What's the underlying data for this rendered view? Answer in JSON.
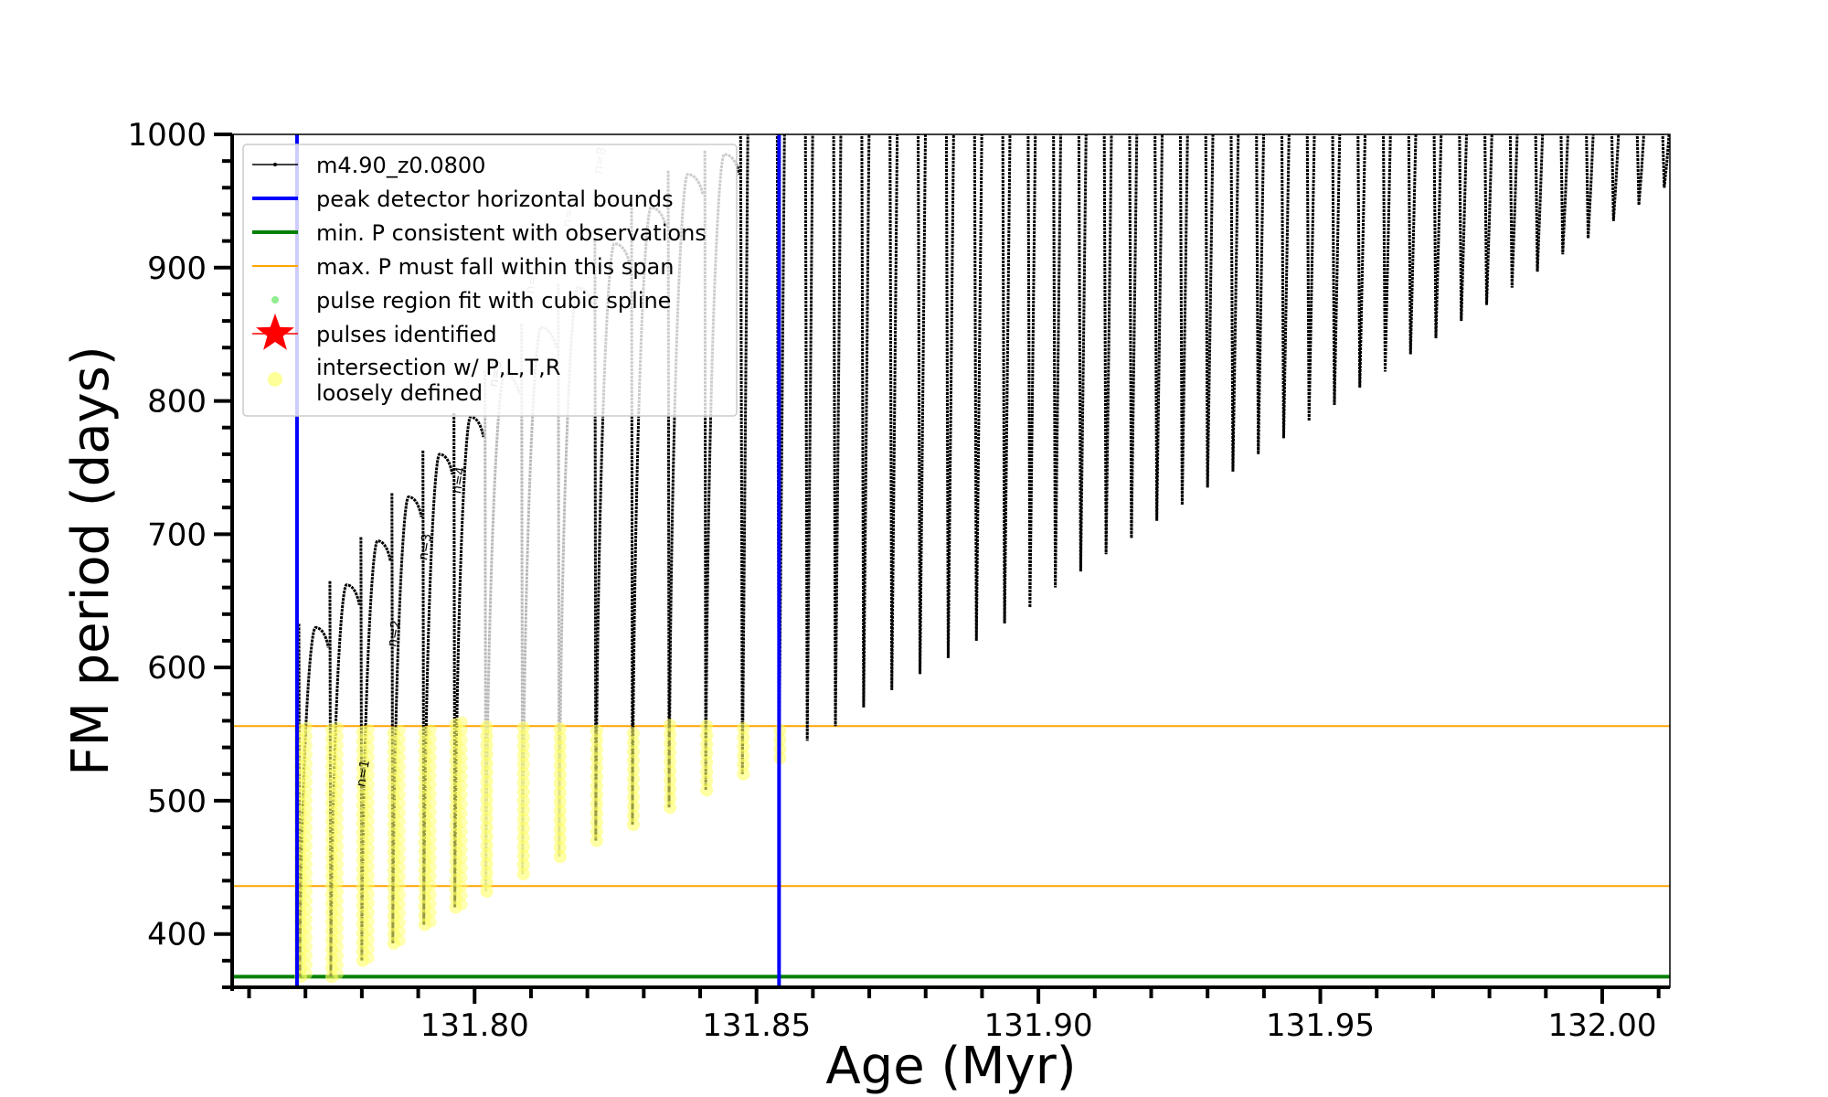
{
  "chart_data": {
    "type": "line",
    "xlabel": "Age (Myr)",
    "ylabel": "FM period (days)",
    "xlim": [
      131.757,
      132.012
    ],
    "ylim": [
      360,
      1000
    ],
    "x_ticks": [
      131.8,
      131.85,
      131.9,
      131.95,
      132.0
    ],
    "x_tick_labels": [
      "131.80",
      "131.85",
      "131.90",
      "131.95",
      "132.00"
    ],
    "y_ticks": [
      400,
      500,
      600,
      700,
      800,
      900,
      1000
    ],
    "y_tick_labels": [
      "400",
      "500",
      "600",
      "700",
      "800",
      "900",
      "1000"
    ],
    "grid": false,
    "legend_position": "upper-left",
    "legend": [
      {
        "label": "m4.90_z0.0800",
        "style": "line-dot",
        "color": "#000000"
      },
      {
        "label": "peak detector horizontal bounds",
        "style": "line",
        "color": "#0000ff"
      },
      {
        "label": "min. P consistent with observations",
        "style": "line",
        "color": "#008000"
      },
      {
        "label": "max. P must fall within this span",
        "style": "line",
        "color": "#ffa500"
      },
      {
        "label": "pulse region fit with cubic spline",
        "style": "dot",
        "color": "#90ee90"
      },
      {
        "label": "pulses identified",
        "style": "star",
        "color": "#ff0000"
      },
      {
        "label": "intersection w/ P,L,T,R\nloosely defined",
        "style": "dot",
        "color": "#ffff99"
      }
    ],
    "series": [
      {
        "name": "m4.90_z0.0800",
        "description_type": "thermal pulse cycles (age, min period, max period)",
        "pulses": [
          {
            "x": 131.769,
            "min": 368,
            "max": 630
          },
          {
            "x": 131.7745,
            "min": 368,
            "max": 662
          },
          {
            "x": 131.78,
            "min": 380,
            "max": 695
          },
          {
            "x": 131.7855,
            "min": 393,
            "max": 728
          },
          {
            "x": 131.791,
            "min": 407,
            "max": 760
          },
          {
            "x": 131.7965,
            "min": 420,
            "max": 788
          },
          {
            "x": 131.802,
            "min": 432,
            "max": 820
          },
          {
            "x": 131.8085,
            "min": 445,
            "max": 855
          },
          {
            "x": 131.815,
            "min": 458,
            "max": 885
          },
          {
            "x": 131.8215,
            "min": 470,
            "max": 918
          },
          {
            "x": 131.828,
            "min": 482,
            "max": 945
          },
          {
            "x": 131.8345,
            "min": 495,
            "max": 970
          },
          {
            "x": 131.841,
            "min": 508,
            "max": 985
          },
          {
            "x": 131.8475,
            "min": 520,
            "max": 1000
          },
          {
            "x": 131.854,
            "min": 532,
            "max": 1000
          },
          {
            "x": 131.859,
            "min": 545,
            "max": 1000
          },
          {
            "x": 131.864,
            "min": 556,
            "max": 1000
          },
          {
            "x": 131.869,
            "min": 570,
            "max": 1000
          },
          {
            "x": 131.874,
            "min": 583,
            "max": 1000
          },
          {
            "x": 131.879,
            "min": 595,
            "max": 1000
          },
          {
            "x": 131.884,
            "min": 607,
            "max": 1000
          },
          {
            "x": 131.889,
            "min": 620,
            "max": 1000
          },
          {
            "x": 131.894,
            "min": 633,
            "max": 1000
          },
          {
            "x": 131.8985,
            "min": 645,
            "max": 1000
          },
          {
            "x": 131.903,
            "min": 660,
            "max": 1000
          },
          {
            "x": 131.9075,
            "min": 672,
            "max": 1000
          },
          {
            "x": 131.912,
            "min": 685,
            "max": 1000
          },
          {
            "x": 131.9165,
            "min": 697,
            "max": 1000
          },
          {
            "x": 131.921,
            "min": 710,
            "max": 1000
          },
          {
            "x": 131.9255,
            "min": 722,
            "max": 1000
          },
          {
            "x": 131.93,
            "min": 735,
            "max": 1000
          },
          {
            "x": 131.9345,
            "min": 747,
            "max": 1000
          },
          {
            "x": 131.939,
            "min": 760,
            "max": 1000
          },
          {
            "x": 131.9435,
            "min": 772,
            "max": 1000
          },
          {
            "x": 131.948,
            "min": 785,
            "max": 1000
          },
          {
            "x": 131.9525,
            "min": 797,
            "max": 1000
          },
          {
            "x": 131.957,
            "min": 810,
            "max": 1000
          },
          {
            "x": 131.9615,
            "min": 822,
            "max": 1000
          },
          {
            "x": 131.966,
            "min": 835,
            "max": 1000
          },
          {
            "x": 131.9705,
            "min": 847,
            "max": 1000
          },
          {
            "x": 131.975,
            "min": 860,
            "max": 1000
          },
          {
            "x": 131.9795,
            "min": 872,
            "max": 1000
          },
          {
            "x": 131.984,
            "min": 885,
            "max": 1000
          },
          {
            "x": 131.9885,
            "min": 897,
            "max": 1000
          },
          {
            "x": 131.993,
            "min": 910,
            "max": 1000
          },
          {
            "x": 131.9975,
            "min": 922,
            "max": 1000
          },
          {
            "x": 132.002,
            "min": 935,
            "max": 1000
          },
          {
            "x": 132.0065,
            "min": 947,
            "max": 1000
          },
          {
            "x": 132.011,
            "min": 960,
            "max": 1000
          }
        ]
      }
    ],
    "vertical_lines": [
      {
        "x": 131.7685,
        "color": "#0000ff"
      },
      {
        "x": 131.854,
        "color": "#0000ff"
      }
    ],
    "horizontal_lines": [
      {
        "y": 368,
        "color": "#008000"
      },
      {
        "y": 436,
        "color": "#ffa500"
      },
      {
        "y": 556,
        "color": "#ffa500"
      }
    ],
    "pulse_labels": [
      {
        "text": "n=1",
        "x": 131.7805,
        "y": 510,
        "color": "#000000"
      },
      {
        "text": "n=2",
        "x": 131.786,
        "y": 615,
        "color": "#000000"
      },
      {
        "text": "n=3",
        "x": 131.7915,
        "y": 680,
        "color": "#000000"
      },
      {
        "text": "n=4",
        "x": 131.7975,
        "y": 730,
        "color": "#000000"
      },
      {
        "text": "n=5",
        "x": 131.804,
        "y": 810,
        "color": "#888888"
      },
      {
        "text": "n=6",
        "x": 131.8105,
        "y": 880,
        "color": "#aaaaaa"
      },
      {
        "text": "n=7",
        "x": 131.817,
        "y": 930,
        "color": "#bbbbbb"
      },
      {
        "text": "n=8",
        "x": 131.8225,
        "y": 970,
        "color": "#bbbbbb"
      }
    ]
  }
}
